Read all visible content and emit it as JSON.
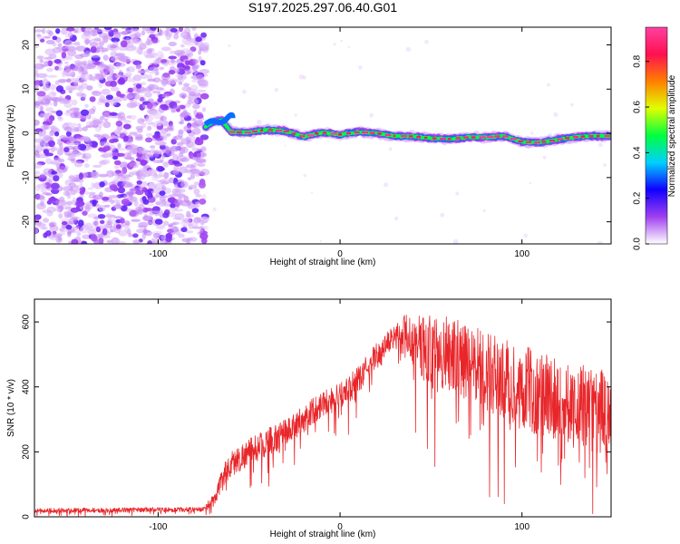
{
  "figure_title": "S197.2025.297.06.40.G01",
  "chart_data": [
    {
      "type": "heatmap",
      "title": "",
      "xlabel": "Height of straight line (km)",
      "ylabel": "Frequency (Hz)",
      "xlim": [
        -168,
        149
      ],
      "ylim": [
        -25,
        24
      ],
      "xticks": [
        -100,
        0,
        100
      ],
      "xtick_labels": [
        "-100",
        "0",
        "100"
      ],
      "yticks": [
        -20,
        -10,
        0,
        10,
        20
      ],
      "ytick_labels": [
        "-20",
        "-10",
        "0",
        "10",
        "20"
      ],
      "grid": false,
      "noise_region_x": [
        -168,
        -74
      ],
      "signal_track": {
        "x": [
          -74,
          -70,
          -65,
          -60,
          -50,
          -40,
          -30,
          -20,
          -10,
          0,
          10,
          20,
          30,
          40,
          50,
          60,
          70,
          80,
          90,
          100,
          110,
          120,
          130,
          140,
          149
        ],
        "freq": [
          1.5,
          2.5,
          3.0,
          0.3,
          0.2,
          0.8,
          0.5,
          -0.8,
          0.2,
          -0.3,
          0.3,
          0.0,
          -0.6,
          -0.7,
          -1.1,
          -1.3,
          -0.9,
          -0.9,
          -0.6,
          -1.9,
          -2.1,
          -1.4,
          -0.8,
          -0.6,
          -0.6
        ]
      },
      "colorbar": {
        "label": "Normalized spectral amplitude",
        "range": [
          0.0,
          0.95
        ],
        "ticks": [
          0.0,
          0.2,
          0.4,
          0.6,
          0.8
        ],
        "tick_labels": [
          "0.0",
          "0.2",
          "0.4",
          "0.6",
          "0.8"
        ],
        "colors": [
          "#ffffff",
          "#a040f0",
          "#1000ff",
          "#00d0ff",
          "#00ff40",
          "#e0ff00",
          "#ff8000",
          "#ff1050",
          "#ff40a0"
        ]
      }
    },
    {
      "type": "line",
      "title": "",
      "xlabel": "Height of straight line (km)",
      "ylabel": "SNR (10 * v/v)",
      "xlim": [
        -168,
        149
      ],
      "ylim": [
        0,
        670
      ],
      "xticks": [
        -100,
        0,
        100
      ],
      "xtick_labels": [
        "-100",
        "0",
        "100"
      ],
      "yticks": [
        0,
        200,
        400,
        600
      ],
      "ytick_labels": [
        "0",
        "200",
        "400",
        "600"
      ],
      "grid": false,
      "series": [
        {
          "name": "SNR",
          "color": "#e8262a",
          "x": [
            -168,
            -150,
            -130,
            -110,
            -90,
            -75,
            -68,
            -65,
            -60,
            -50,
            -40,
            -30,
            -20,
            -10,
            0,
            10,
            20,
            30,
            35,
            40,
            50,
            60,
            70,
            80,
            90,
            100,
            110,
            120,
            130,
            140,
            149
          ],
          "mean": [
            20,
            20,
            20,
            22,
            22,
            23,
            60,
            120,
            160,
            200,
            230,
            260,
            300,
            350,
            370,
            420,
            500,
            560,
            580,
            540,
            510,
            500,
            470,
            450,
            420,
            400,
            380,
            370,
            340,
            330,
            320
          ],
          "spread": [
            12,
            12,
            12,
            12,
            12,
            12,
            40,
            60,
            70,
            70,
            70,
            70,
            70,
            70,
            70,
            70,
            60,
            60,
            80,
            150,
            190,
            200,
            200,
            210,
            210,
            220,
            220,
            220,
            220,
            220,
            220
          ]
        }
      ]
    }
  ]
}
